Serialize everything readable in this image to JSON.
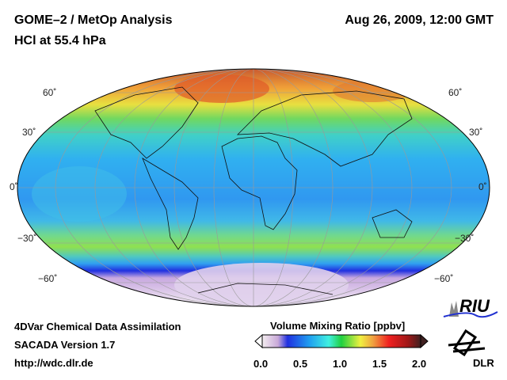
{
  "header": {
    "title": "GOME–2 / MetOp Analysis",
    "subtitle": "HCl at 55.4 hPa",
    "datetime": "Aug 26, 2009, 12:00 GMT"
  },
  "map": {
    "projection": "Mollweide",
    "lat_labels_left": [
      "60˚",
      "30˚",
      "0˚",
      "−30˚",
      "−60˚"
    ],
    "lat_labels_right": [
      "60˚",
      "30˚",
      "0˚",
      "−30˚",
      "−60˚"
    ]
  },
  "footer": {
    "line1": "4DVar Chemical Data Assimilation",
    "line2": "SACADA Version 1.7",
    "line3": "http://wdc.dlr.de"
  },
  "colorbar": {
    "title": "Volume Mixing Ratio [ppbv]",
    "ticks": [
      "0.0",
      "0.5",
      "1.0",
      "1.5",
      "2.0"
    ],
    "range": [
      0.0,
      2.0
    ],
    "colors": [
      "#f4eef0",
      "#c8a8d8",
      "#2030e0",
      "#20a0f0",
      "#40f0e0",
      "#20d040",
      "#f0f040",
      "#f0a040",
      "#f02020",
      "#a01818",
      "#402020"
    ]
  },
  "logos": {
    "riu": "RIU",
    "dlr": "DLR"
  }
}
